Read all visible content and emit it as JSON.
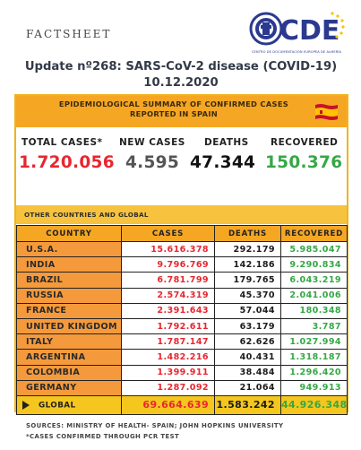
{
  "header": {
    "label": "FACTSHEET",
    "logo": {
      "text": "CDE",
      "subtitle": "CENTRO DE DOCUMENTACIÓN EUROPEA DE ALMERÍA",
      "colors": {
        "blue": "#2b3a8f",
        "yellow": "#f5c400"
      }
    },
    "title": "Update nº268: SARS-CoV-2 disease (COVID-19) 10.12.2020"
  },
  "spain": {
    "heading": "EPIDEMIOLOGICAL SUMMARY OF CONFIRMED CASES REPORTED IN SPAIN",
    "flag_icon": "spain-flag-icon",
    "kpis": {
      "total_cases": {
        "label": "TOTAL CASES*",
        "value": "1.720.056",
        "color": "#e8262f"
      },
      "new_cases": {
        "label": "NEW CASES",
        "value": "4.595",
        "color": "#555555"
      },
      "deaths": {
        "label": "DEATHS",
        "value": "47.344",
        "color": "#111111"
      },
      "recovered": {
        "label": "RECOVERED",
        "value": "150.376",
        "color": "#35a845"
      }
    }
  },
  "global_section": {
    "heading": "OTHER COUNTRIES AND GLOBAL",
    "columns": [
      "COUNTRY",
      "CASES",
      "DEATHS",
      "RECOVERED"
    ],
    "rows": [
      {
        "country": "U.S.A.",
        "cases": "15.616.378",
        "deaths": "292.179",
        "recovered": "5.985.047"
      },
      {
        "country": "INDIA",
        "cases": "9.796.769",
        "deaths": "142.186",
        "recovered": "9.290.834"
      },
      {
        "country": "BRAZIL",
        "cases": "6.781.799",
        "deaths": "179.765",
        "recovered": "6.043.219"
      },
      {
        "country": "RUSSIA",
        "cases": "2.574.319",
        "deaths": "45.370",
        "recovered": "2.041.006"
      },
      {
        "country": "FRANCE",
        "cases": "2.391.643",
        "deaths": "57.044",
        "recovered": "180.348"
      },
      {
        "country": "UNITED KINGDOM",
        "cases": "1.792.611",
        "deaths": "63.179",
        "recovered": "3.787"
      },
      {
        "country": "ITALY",
        "cases": "1.787.147",
        "deaths": "62.626",
        "recovered": "1.027.994"
      },
      {
        "country": "ARGENTINA",
        "cases": "1.482.216",
        "deaths": "40.431",
        "recovered": "1.318.187"
      },
      {
        "country": "COLOMBIA",
        "cases": "1.399.911",
        "deaths": "38.484",
        "recovered": "1.296.420"
      },
      {
        "country": "GERMANY",
        "cases": "1.287.092",
        "deaths": "21.064",
        "recovered": "949.913"
      }
    ],
    "global": {
      "country": "GLOBAL",
      "cases": "69.664.639",
      "deaths": "1.583.242",
      "recovered": "44.926.348"
    }
  },
  "footer": {
    "sources": "SOURCES: MINISTRY OF HEALTH- SPAIN; JOHN HOPKINS UNIVERSITY",
    "note": "*CASES CONFIRMED THROUGH PCR TEST"
  }
}
